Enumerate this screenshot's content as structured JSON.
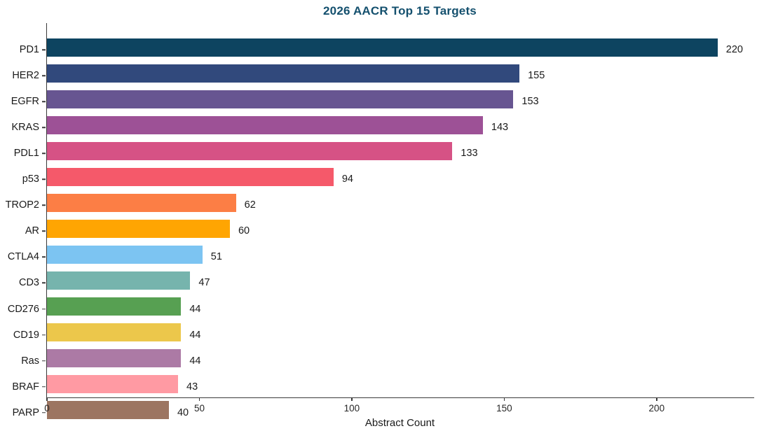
{
  "chart_data": {
    "type": "bar",
    "orientation": "horizontal",
    "title": "2026 AACR Top 15 Targets",
    "xlabel": "Abstract Count",
    "ylabel": "",
    "categories": [
      "PD1",
      "HER2",
      "EGFR",
      "KRAS",
      "PDL1",
      "p53",
      "TROP2",
      "AR",
      "CTLA4",
      "CD3",
      "CD276",
      "CD19",
      "Ras",
      "BRAF",
      "PARP"
    ],
    "values": [
      220,
      155,
      153,
      143,
      133,
      94,
      62,
      60,
      51,
      47,
      44,
      44,
      44,
      43,
      40
    ],
    "bar_value_labels": [
      "220",
      "155",
      "153",
      "143",
      "133",
      "94",
      "62",
      "60",
      "51",
      "47",
      "44",
      "44",
      "44",
      "43",
      "40"
    ],
    "colors": [
      "#0d4460",
      "#31497c",
      "#675591",
      "#9d5196",
      "#d65285",
      "#f5596a",
      "#fc7e45",
      "#ffa502",
      "#7cc4f2",
      "#76b4ad",
      "#57a052",
      "#ecc74b",
      "#ac7aa5",
      "#ff9aa3",
      "#9c7561"
    ],
    "xlim": [
      0,
      232
    ],
    "xticks": [
      0,
      50,
      100,
      150,
      200
    ],
    "grid": false,
    "legend": "none",
    "styles": {
      "title_color": "#14506e",
      "axis_color": "#3a3a3a",
      "text_color": "#1a1a1a",
      "background": "#ffffff"
    }
  }
}
